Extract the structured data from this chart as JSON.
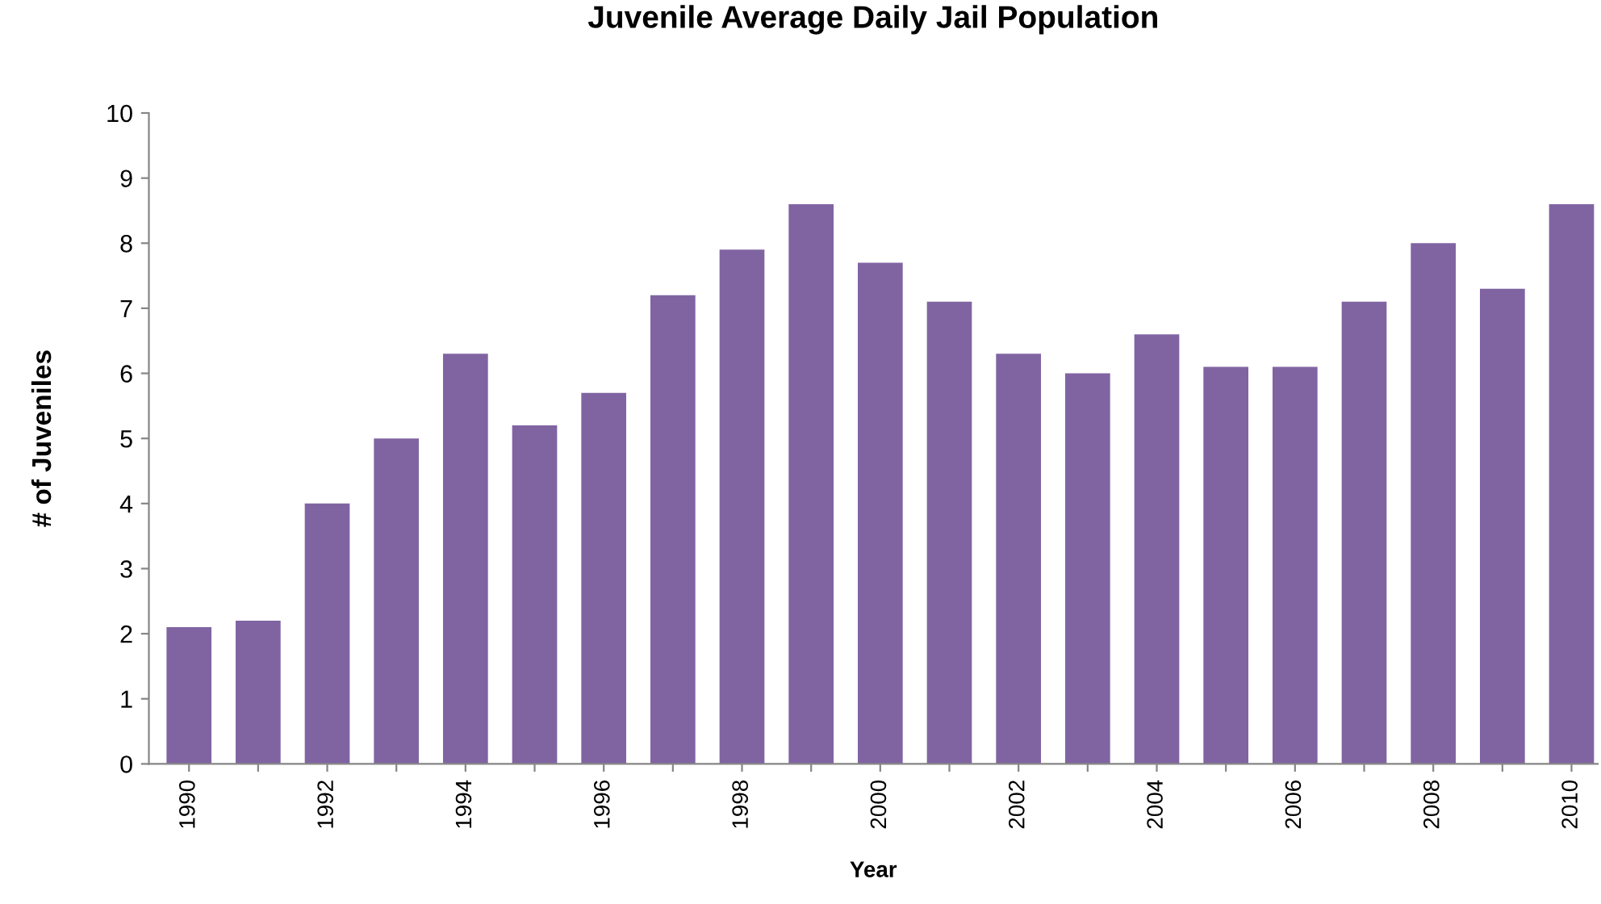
{
  "chart_data": {
    "type": "bar",
    "title": "Juvenile Average Daily Jail Population",
    "xlabel": "Year",
    "ylabel": "# of Juveniles",
    "categories": [
      "1990",
      null,
      "1992",
      null,
      "1994",
      null,
      "1996",
      null,
      "1998",
      null,
      "2000",
      null,
      "2002",
      null,
      "2004",
      null,
      "2006",
      null,
      "2008",
      null,
      "2010"
    ],
    "values": [
      2.1,
      2.2,
      4.0,
      5.0,
      6.3,
      5.2,
      5.7,
      7.2,
      7.9,
      8.6,
      7.7,
      7.1,
      6.3,
      6.0,
      6.6,
      6.1,
      6.1,
      7.1,
      8.0,
      7.3,
      8.6
    ],
    "color": "#8064a2",
    "ylim": [
      0,
      10
    ],
    "yticks": [
      0,
      1,
      2,
      3,
      4,
      5,
      6,
      7,
      8,
      9,
      10
    ],
    "grid": false,
    "legend": false
  }
}
